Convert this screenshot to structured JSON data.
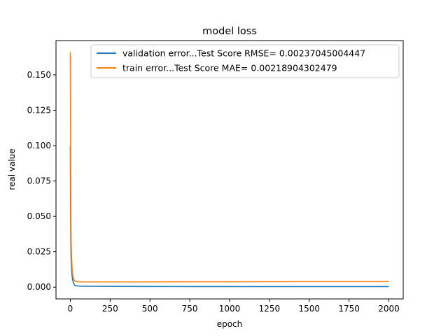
{
  "chart_data": {
    "type": "line",
    "title": "model loss",
    "xlabel": "epoch",
    "ylabel": "real value",
    "xlim": [
      -90,
      2090
    ],
    "ylim": [
      -0.0083,
      0.1742
    ],
    "xticks": [
      0,
      250,
      500,
      750,
      1000,
      1250,
      1500,
      1750,
      2000
    ],
    "xtick_labels": [
      "0",
      "250",
      "500",
      "750",
      "1000",
      "1250",
      "1500",
      "1750",
      "2000"
    ],
    "yticks": [
      0.0,
      0.025,
      0.05,
      0.075,
      0.1,
      0.125,
      0.15
    ],
    "ytick_labels": [
      "0.000",
      "0.025",
      "0.050",
      "0.075",
      "0.100",
      "0.125",
      "0.150"
    ],
    "grid": false,
    "legend_position": "top-right",
    "series": [
      {
        "name": "validation error...Test Score RMSE= 0.00237045004447",
        "color": "#1f77b4",
        "x": [
          0,
          1,
          2,
          3,
          5,
          8,
          12,
          16,
          20,
          25,
          30,
          40,
          50,
          75,
          100,
          150,
          200,
          300,
          500,
          750,
          1000,
          1500,
          2000
        ],
        "y": [
          0.1,
          0.072,
          0.05,
          0.035,
          0.02,
          0.012,
          0.007,
          0.0045,
          0.003,
          0.0018,
          0.0012,
          0.0009,
          0.0008,
          0.0007,
          0.00065,
          0.0006,
          0.00055,
          0.0005,
          0.00045,
          0.0004,
          0.0004,
          0.0004,
          0.0004
        ]
      },
      {
        "name": "train error...Test Score MAE= 0.00218904302479",
        "color": "#ff7f0e",
        "x": [
          0,
          1,
          2,
          3,
          5,
          8,
          12,
          16,
          20,
          25,
          30,
          40,
          50,
          75,
          100,
          150,
          200,
          300,
          500,
          750,
          1000,
          1500,
          2000
        ],
        "y": [
          0.166,
          0.14,
          0.09,
          0.06,
          0.035,
          0.02,
          0.012,
          0.008,
          0.006,
          0.0048,
          0.0042,
          0.0039,
          0.0038,
          0.0037,
          0.0037,
          0.0037,
          0.0037,
          0.0037,
          0.0037,
          0.0038,
          0.0038,
          0.0039,
          0.0039
        ]
      }
    ]
  }
}
